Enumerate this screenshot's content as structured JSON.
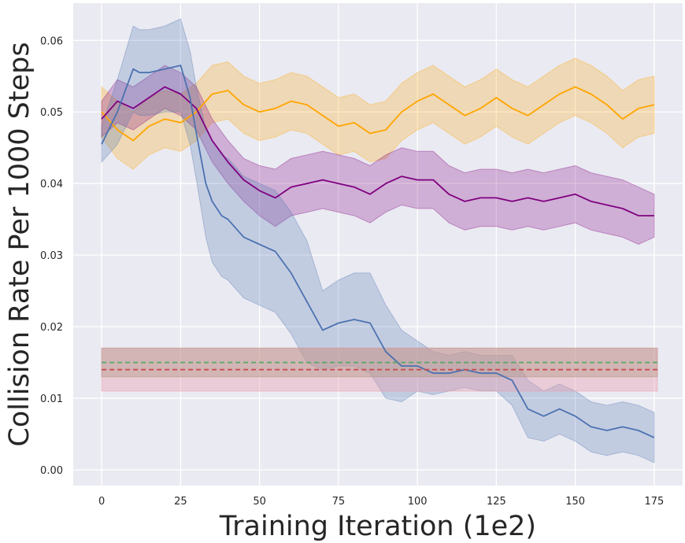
{
  "chart_data": {
    "type": "line",
    "xlabel": "Training Iteration (1e2)",
    "ylabel": "Collision Rate Per 1000 Steps",
    "xlim": [
      -9,
      184
    ],
    "ylim": [
      -0.0022,
      0.0652
    ],
    "xticks": [
      0,
      25,
      50,
      75,
      100,
      125,
      150,
      175
    ],
    "yticks": [
      0.0,
      0.01,
      0.02,
      0.03,
      0.04,
      0.05,
      0.06
    ],
    "ytick_labels": [
      "0.00",
      "0.01",
      "0.02",
      "0.03",
      "0.04",
      "0.05",
      "0.06"
    ],
    "grid": true,
    "background": "#EAEAF2",
    "series": [
      {
        "color": "#FFA500",
        "x": [
          0,
          5,
          10,
          15,
          20,
          25,
          30,
          35,
          40,
          45,
          50,
          55,
          60,
          65,
          70,
          75,
          80,
          85,
          90,
          95,
          100,
          105,
          110,
          115,
          120,
          125,
          130,
          135,
          140,
          145,
          150,
          155,
          160,
          165,
          170,
          175
        ],
        "y": [
          0.05,
          0.0475,
          0.046,
          0.048,
          0.049,
          0.0485,
          0.05,
          0.0525,
          0.053,
          0.051,
          0.05,
          0.0505,
          0.0515,
          0.051,
          0.0495,
          0.048,
          0.0485,
          0.047,
          0.0475,
          0.05,
          0.0515,
          0.0525,
          0.051,
          0.0495,
          0.0505,
          0.052,
          0.0505,
          0.0495,
          0.051,
          0.0525,
          0.0535,
          0.0525,
          0.051,
          0.049,
          0.0505,
          0.051
        ],
        "band": [
          0.0035,
          0.004,
          0.004,
          0.004,
          0.004,
          0.004,
          0.004,
          0.004,
          0.004,
          0.004,
          0.004,
          0.004,
          0.004,
          0.004,
          0.004,
          0.004,
          0.004,
          0.004,
          0.004,
          0.004,
          0.004,
          0.004,
          0.004,
          0.004,
          0.004,
          0.004,
          0.004,
          0.004,
          0.004,
          0.004,
          0.004,
          0.004,
          0.004,
          0.004,
          0.004,
          0.004
        ]
      },
      {
        "color": "#800080",
        "x": [
          0,
          5,
          10,
          15,
          20,
          25,
          30,
          35,
          40,
          45,
          50,
          55,
          60,
          65,
          70,
          75,
          80,
          85,
          90,
          95,
          100,
          105,
          110,
          115,
          120,
          125,
          130,
          135,
          140,
          145,
          150,
          155,
          160,
          165,
          170,
          175
        ],
        "y": [
          0.049,
          0.0515,
          0.0505,
          0.052,
          0.0535,
          0.0525,
          0.0505,
          0.046,
          0.043,
          0.0405,
          0.039,
          0.038,
          0.0395,
          0.04,
          0.0405,
          0.04,
          0.0395,
          0.0385,
          0.04,
          0.041,
          0.0405,
          0.0405,
          0.0385,
          0.0375,
          0.038,
          0.038,
          0.0375,
          0.038,
          0.0375,
          0.038,
          0.0385,
          0.0375,
          0.037,
          0.0365,
          0.0355,
          0.0355
        ],
        "band": [
          0.0025,
          0.003,
          0.003,
          0.003,
          0.003,
          0.003,
          0.003,
          0.003,
          0.003,
          0.003,
          0.0035,
          0.004,
          0.004,
          0.004,
          0.004,
          0.004,
          0.004,
          0.004,
          0.004,
          0.004,
          0.004,
          0.004,
          0.004,
          0.004,
          0.004,
          0.004,
          0.004,
          0.004,
          0.004,
          0.004,
          0.004,
          0.004,
          0.004,
          0.004,
          0.004,
          0.003
        ]
      },
      {
        "color": "#4C72B0",
        "x": [
          0,
          5,
          10,
          12,
          15,
          20,
          25,
          28,
          30,
          33,
          35,
          38,
          40,
          43,
          45,
          50,
          55,
          60,
          65,
          70,
          75,
          80,
          85,
          90,
          95,
          100,
          105,
          110,
          115,
          120,
          125,
          130,
          135,
          140,
          145,
          150,
          155,
          160,
          165,
          170,
          175
        ],
        "y": [
          0.0455,
          0.05,
          0.056,
          0.0555,
          0.0555,
          0.056,
          0.0565,
          0.052,
          0.047,
          0.04,
          0.0375,
          0.0355,
          0.035,
          0.0335,
          0.0325,
          0.0315,
          0.0305,
          0.0275,
          0.0235,
          0.0195,
          0.0205,
          0.021,
          0.0205,
          0.0165,
          0.0145,
          0.0145,
          0.0135,
          0.0135,
          0.014,
          0.0135,
          0.0135,
          0.0125,
          0.0085,
          0.0075,
          0.0085,
          0.0075,
          0.006,
          0.0055,
          0.006,
          0.0055,
          0.0045
        ],
        "band": [
          0.0025,
          0.0045,
          0.006,
          0.006,
          0.006,
          0.006,
          0.0065,
          0.0065,
          0.0065,
          0.0075,
          0.0085,
          0.0085,
          0.0085,
          0.0085,
          0.0085,
          0.0085,
          0.0085,
          0.0085,
          0.0085,
          0.0055,
          0.006,
          0.0065,
          0.007,
          0.0065,
          0.005,
          0.0035,
          0.003,
          0.0025,
          0.0025,
          0.0025,
          0.0025,
          0.0035,
          0.004,
          0.0035,
          0.0035,
          0.0035,
          0.0035,
          0.0035,
          0.0035,
          0.0035,
          0.0035
        ]
      },
      {
        "color": "#55A868",
        "style": "dashed",
        "x": [
          0,
          176
        ],
        "y": [
          0.015,
          0.015
        ],
        "band_fill": "#8C8C60",
        "band_low": 0.013,
        "band_high": 0.017
      },
      {
        "color": "#C44E52",
        "style": "dashed",
        "x": [
          0,
          176
        ],
        "y": [
          0.014,
          0.014
        ],
        "band_fill": "#E8A0B0",
        "band_low": 0.011,
        "band_high": 0.017
      }
    ]
  }
}
